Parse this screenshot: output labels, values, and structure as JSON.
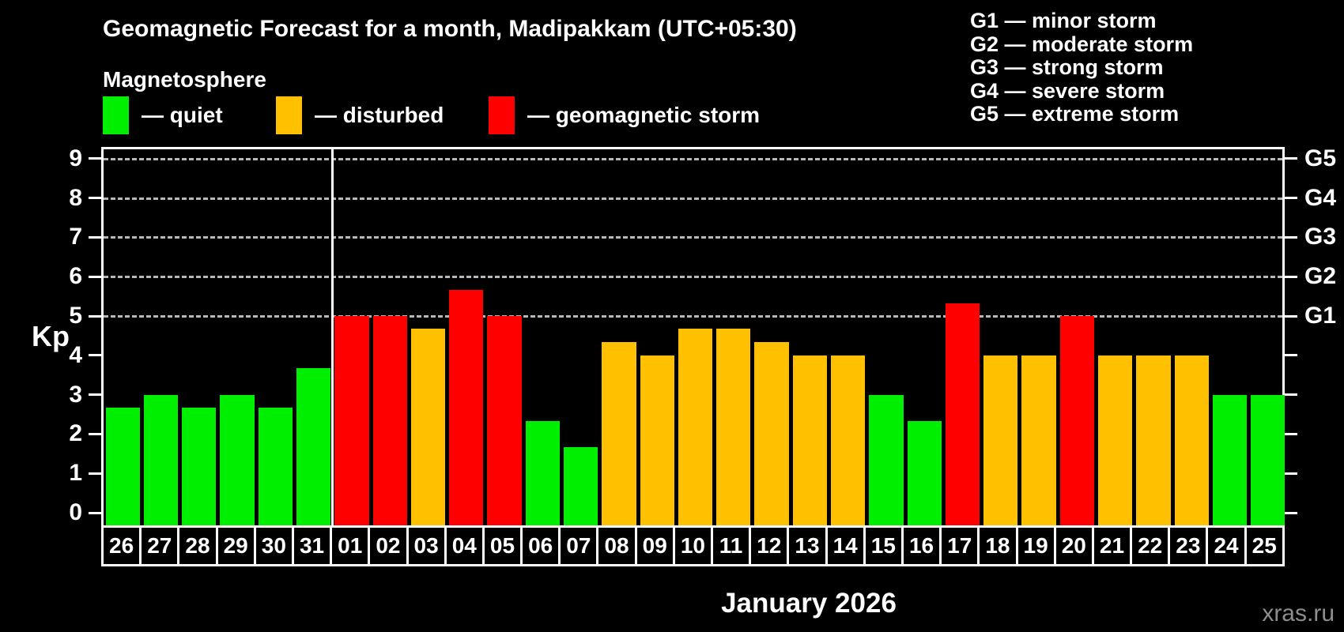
{
  "title": "Geomagnetic Forecast for a month, Madipakkam (UTC+05:30)",
  "magnetosphere_legend": {
    "title": "Magnetosphere",
    "items": [
      {
        "key": "quiet",
        "label": "— quiet",
        "color": "#00ee00"
      },
      {
        "key": "disturbed",
        "label": "— disturbed",
        "color": "#ffc000"
      },
      {
        "key": "storm",
        "label": "— geomagnetic storm",
        "color": "#ff0000"
      }
    ]
  },
  "g_scale_legend": {
    "items": [
      "G1 — minor storm",
      "G2 — moderate storm",
      "G3 — strong storm",
      "G4 — severe storm",
      "G5 — extreme storm"
    ]
  },
  "chart_data": {
    "type": "bar",
    "title": "Geomagnetic Forecast for a month, Madipakkam (UTC+05:30)",
    "ylabel": "Kp",
    "xlabel": "January 2026",
    "ylim": [
      0,
      9.6
    ],
    "yticks": [
      0,
      1,
      2,
      3,
      4,
      5,
      6,
      7,
      8,
      9
    ],
    "gridlines_at": [
      5,
      6,
      7,
      8,
      9
    ],
    "grid": "horizontal dashed lines at Kp 5-9 only",
    "legend_position": "top",
    "right_axis_labels": [
      {
        "kp": 5,
        "label": "G1"
      },
      {
        "kp": 6,
        "label": "G2"
      },
      {
        "kp": 7,
        "label": "G3"
      },
      {
        "kp": 8,
        "label": "G4"
      },
      {
        "kp": 9,
        "label": "G5"
      }
    ],
    "categories": [
      "26",
      "27",
      "28",
      "29",
      "30",
      "31",
      "01",
      "02",
      "03",
      "04",
      "05",
      "06",
      "07",
      "08",
      "09",
      "10",
      "11",
      "12",
      "13",
      "14",
      "15",
      "16",
      "17",
      "18",
      "19",
      "20",
      "21",
      "22",
      "23",
      "24",
      "25"
    ],
    "values": [
      2.67,
      3,
      2.67,
      3,
      2.67,
      3.67,
      5,
      5,
      4.67,
      5.67,
      5,
      2.33,
      1.67,
      4.33,
      4,
      4.67,
      4.67,
      4.33,
      4,
      4,
      3,
      2.33,
      5.33,
      4,
      4,
      5,
      4,
      4,
      4,
      3,
      3
    ],
    "status": [
      "quiet",
      "quiet",
      "quiet",
      "quiet",
      "quiet",
      "quiet",
      "storm",
      "storm",
      "disturbed",
      "storm",
      "storm",
      "quiet",
      "quiet",
      "disturbed",
      "disturbed",
      "disturbed",
      "disturbed",
      "disturbed",
      "disturbed",
      "disturbed",
      "quiet",
      "quiet",
      "storm",
      "disturbed",
      "disturbed",
      "storm",
      "disturbed",
      "disturbed",
      "disturbed",
      "quiet",
      "quiet"
    ],
    "month_separator_after_category": "31",
    "colors": {
      "quiet": "#00ee00",
      "disturbed": "#ffc000",
      "storm": "#ff0000",
      "grid": "#b8b8b8",
      "axis": "#ffffff"
    }
  },
  "footer": {
    "month_label": "January 2026",
    "watermark": "xras.ru"
  }
}
